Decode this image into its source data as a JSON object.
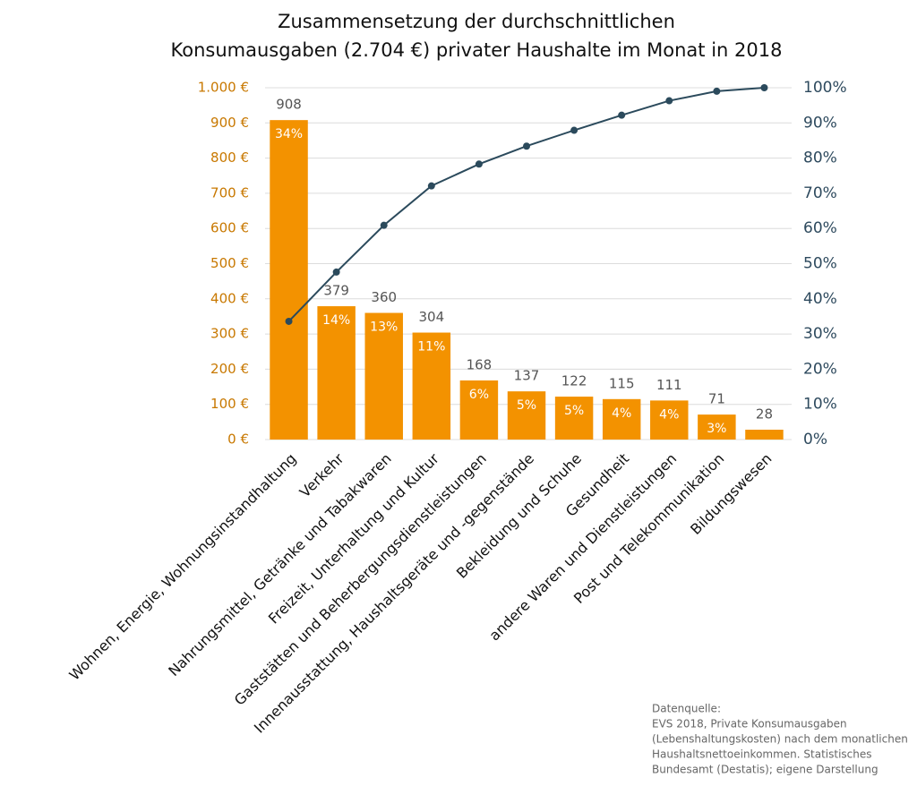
{
  "chart_data": {
    "type": "pareto",
    "title": [
      "Zusammensetzung der durchschnittlichen",
      "Konsumausgaben (2.704 €) privater Haushalte im Monat in 2018"
    ],
    "categories": [
      "Wohnen, Energie, Wohnungsinstandhaltung",
      "Verkehr",
      "Nahrungsmittel, Getränke und Tabakwaren",
      "Freizeit, Unterhaltung und Kultur",
      "Gaststätten und Beherbergungsdienstleistungen",
      "Innenausstattung, Haushaltsgeräte und -gegenstände",
      "Bekleidung und Schuhe",
      "Gesundheit",
      "andere Waren und Dienstleistungen",
      "Post und Telekommunikation",
      "Bildungswesen"
    ],
    "values": [
      908,
      379,
      360,
      304,
      168,
      137,
      122,
      115,
      111,
      71,
      28
    ],
    "color": "#f39200",
    "shares": {
      "values": [
        34,
        14,
        13,
        11,
        6,
        5,
        5,
        4,
        4,
        3,
        null
      ],
      "value_labels": [
        "34%",
        "14%",
        "13%",
        "11%",
        "6%",
        "5%",
        "5%",
        "4%",
        "4%",
        "3%",
        null
      ]
    },
    "cumulative": {
      "axis": "y2",
      "color": "#2b4a5c",
      "values": [
        33.6,
        47.6,
        60.9,
        72.1,
        78.3,
        83.4,
        87.9,
        92.2,
        96.3,
        99.0,
        100
      ]
    },
    "ylim": [
      0,
      1000
    ],
    "yticks": [
      {
        "value": 0,
        "label": "0 €"
      },
      {
        "value": 100,
        "label": "100 €"
      },
      {
        "value": 200,
        "label": "200 €"
      },
      {
        "value": 300,
        "label": "300 €"
      },
      {
        "value": 400,
        "label": "400 €"
      },
      {
        "value": 500,
        "label": "500 €"
      },
      {
        "value": 600,
        "label": "600 €"
      },
      {
        "value": 700,
        "label": "700 €"
      },
      {
        "value": 800,
        "label": "800 €"
      },
      {
        "value": 900,
        "label": "900 €"
      },
      {
        "value": 1000,
        "label": "1.000 €"
      }
    ],
    "y2lim": [
      0,
      100
    ],
    "y2ticks": [
      {
        "value": 0,
        "label": "0%"
      },
      {
        "value": 10,
        "label": "10%"
      },
      {
        "value": 20,
        "label": "20%"
      },
      {
        "value": 30,
        "label": "30%"
      },
      {
        "value": 40,
        "label": "40%"
      },
      {
        "value": 50,
        "label": "50%"
      },
      {
        "value": 60,
        "label": "60%"
      },
      {
        "value": 70,
        "label": "70%"
      },
      {
        "value": 80,
        "label": "80%"
      },
      {
        "value": 90,
        "label": "90%"
      },
      {
        "value": 100,
        "label": "100%"
      }
    ],
    "grid": true,
    "source": [
      "Datenquelle:",
      "EVS 2018, Private Konsumausgaben",
      "(Lebenshaltungskosten) nach dem monatlichen",
      "Haushaltsnettoeinkommen. Statistisches",
      "Bundesamt (Destatis); eigene Darstellung"
    ]
  }
}
